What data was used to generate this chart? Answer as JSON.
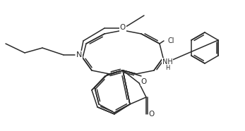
{
  "bg_color": "#ffffff",
  "line_color": "#2a2a2a",
  "line_width": 1.1,
  "font_size": 7.0,
  "figsize": [
    3.47,
    1.86
  ],
  "dpi": 100,
  "xlim": [
    0,
    347
  ],
  "ylim": [
    0,
    186
  ]
}
